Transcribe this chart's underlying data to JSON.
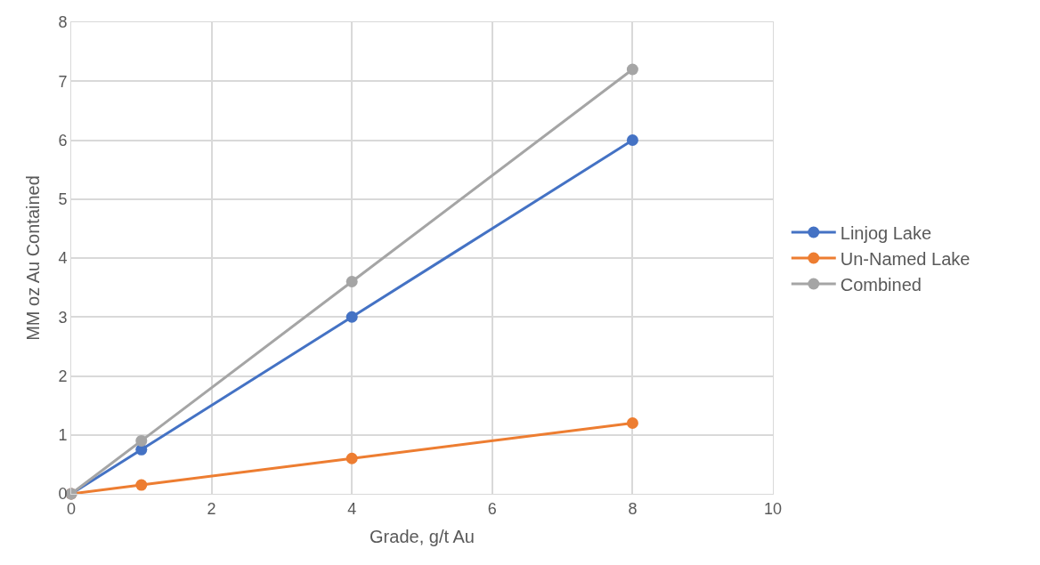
{
  "chart_data": {
    "type": "line",
    "xlabel": "Grade, g/t Au",
    "ylabel": "MM oz Au Contained",
    "x": [
      0,
      1,
      4,
      8
    ],
    "series": [
      {
        "name": "Linjog Lake",
        "color": "#4472c4",
        "values": [
          0,
          0.75,
          3,
          6
        ]
      },
      {
        "name": "Un-Named Lake",
        "color": "#ed7d31",
        "values": [
          0,
          0.15,
          0.6,
          1.2
        ]
      },
      {
        "name": "Combined",
        "color": "#a5a5a5",
        "values": [
          0,
          0.9,
          3.6,
          7.2
        ]
      }
    ],
    "xlim": [
      0,
      10
    ],
    "xticks": [
      0,
      2,
      4,
      6,
      8,
      10
    ],
    "ylim": [
      0,
      8
    ],
    "yticks": [
      0,
      1,
      2,
      3,
      4,
      5,
      6,
      7,
      8
    ],
    "grid": true,
    "legend": "right",
    "marker": "circle",
    "line_style": "solid"
  }
}
